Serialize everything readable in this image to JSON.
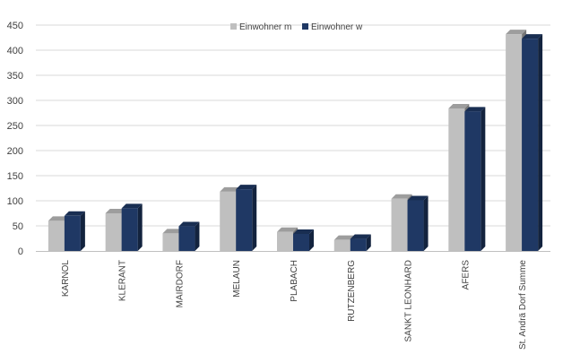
{
  "chart_data": {
    "type": "bar",
    "style": "3d-clustered-column",
    "categories": [
      "KARNOL",
      "KLERANT",
      "MAIRDORF",
      "MELAUN",
      "PLABACH",
      "RUTZENBERG",
      "SANKT LEONHARD",
      "AFERS",
      "St. Andrä Dorf Summe"
    ],
    "series": [
      {
        "name": "Einwohner m",
        "values": [
          60,
          75,
          35,
          118,
          38,
          22,
          104,
          284,
          432
        ],
        "color": "#bfbfbf"
      },
      {
        "name": "Einwohner w",
        "values": [
          70,
          85,
          49,
          123,
          34,
          24,
          101,
          278,
          423
        ],
        "color": "#1f3864"
      }
    ],
    "ylim": [
      0,
      450
    ],
    "yticks": [
      "0",
      "50",
      "100",
      "150",
      "200",
      "250",
      "300",
      "350",
      "400",
      "450"
    ],
    "grid": true,
    "legend_position": "top-center",
    "title": "",
    "xlabel": "",
    "ylabel": ""
  }
}
